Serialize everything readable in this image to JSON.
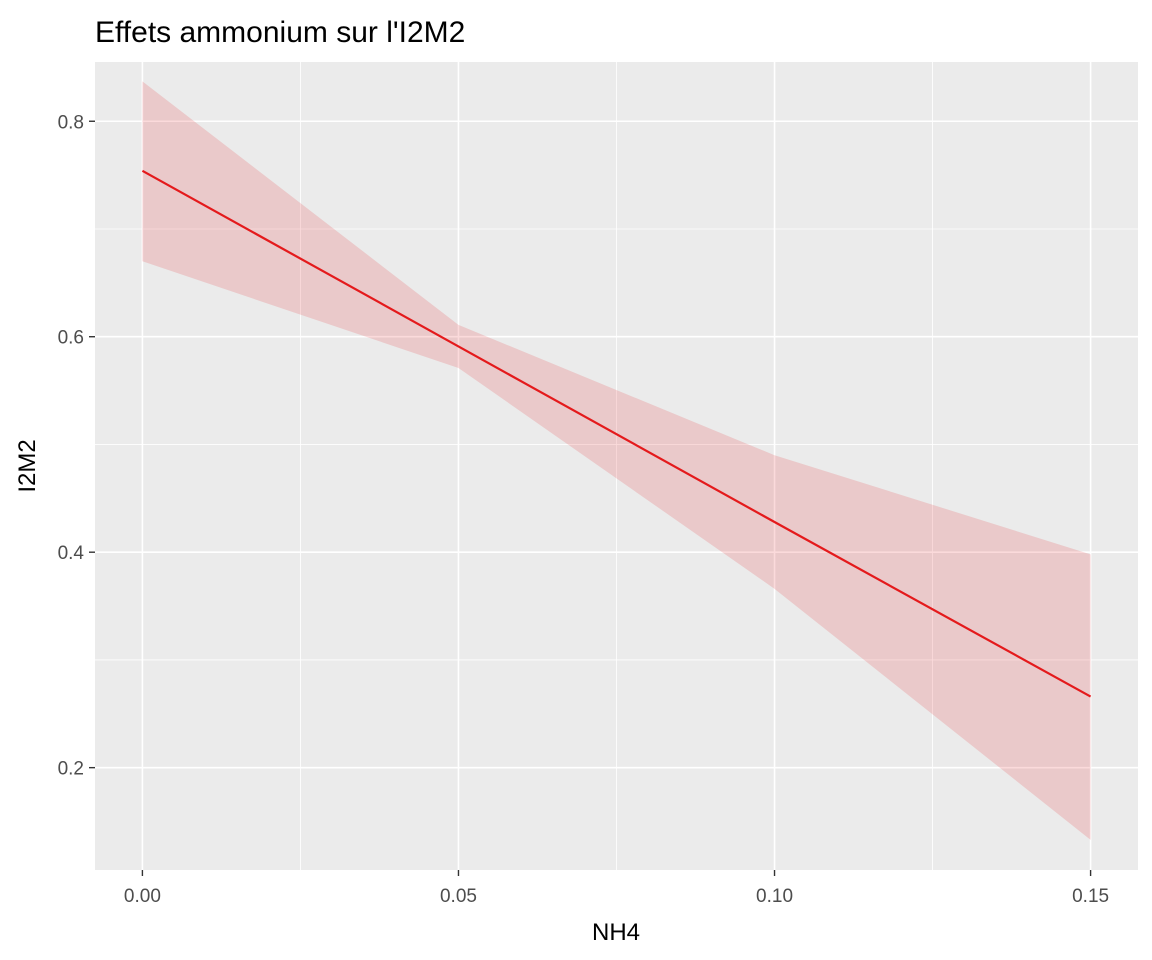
{
  "chart_data": {
    "type": "line",
    "title": "Effets ammonium  sur l'I2M2",
    "xlabel": "NH4",
    "ylabel": "I2M2",
    "xlim": [
      -0.0075,
      0.1575
    ],
    "ylim": [
      0.105,
      0.855
    ],
    "x_ticks": [
      0.0,
      0.05,
      0.1,
      0.15
    ],
    "x_tick_labels": [
      "0.00",
      "0.05",
      "0.10",
      "0.15"
    ],
    "y_ticks": [
      0.2,
      0.4,
      0.6,
      0.8
    ],
    "y_tick_labels": [
      "0.2",
      "0.4",
      "0.6",
      "0.8"
    ],
    "grid": true,
    "legend": "none",
    "colors": {
      "panel_background": "#ebebeb",
      "grid": "#ffffff",
      "line": "#e41a1c",
      "ribbon": "#e41a1c"
    },
    "series": [
      {
        "x": [
          0.0,
          0.05,
          0.1,
          0.15
        ],
        "y": [
          0.754,
          0.591,
          0.428,
          0.266
        ],
        "lower": [
          0.67,
          0.571,
          0.366,
          0.133
        ],
        "upper": [
          0.837,
          0.611,
          0.49,
          0.398
        ]
      }
    ]
  }
}
